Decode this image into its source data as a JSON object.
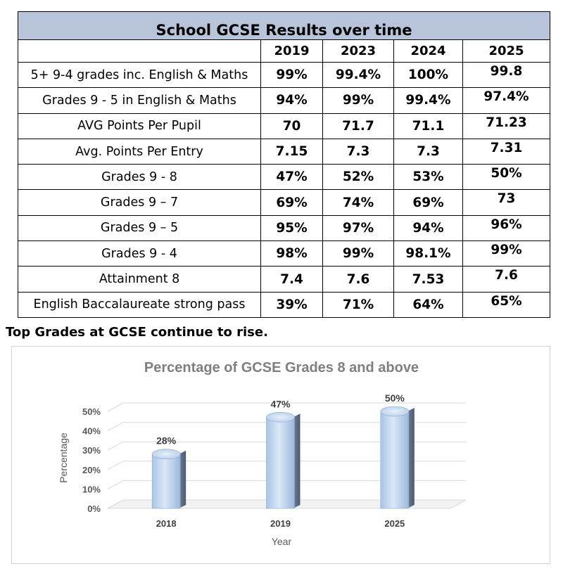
{
  "table": {
    "title": "School GCSE Results over time",
    "columns": [
      "2019",
      "2023",
      "2024",
      "2025"
    ],
    "rows": [
      {
        "label": "5+ 9-4 grades inc. English & Maths",
        "values": [
          "99%",
          "99.4%",
          "100%",
          "99.8"
        ]
      },
      {
        "label": "Grades 9 - 5 in English & Maths",
        "values": [
          "94%",
          "99%",
          "99.4%",
          "97.4%"
        ]
      },
      {
        "label": "AVG Points Per Pupil",
        "values": [
          "70",
          "71.7",
          "71.1",
          "71.23"
        ]
      },
      {
        "label": "Avg. Points Per Entry",
        "values": [
          "7.15",
          "7.3",
          "7.3",
          "7.31"
        ]
      },
      {
        "label": "Grades 9 - 8",
        "values": [
          "47%",
          "52%",
          "53%",
          "50%"
        ]
      },
      {
        "label": "Grades 9 – 7",
        "values": [
          "69%",
          "74%",
          "69%",
          "73"
        ]
      },
      {
        "label": "Grades 9 – 5",
        "values": [
          "95%",
          "97%",
          "94%",
          "96%"
        ]
      },
      {
        "label": "Grades 9 - 4",
        "values": [
          "98%",
          "99%",
          "98.1%",
          "99%"
        ]
      },
      {
        "label": "Attainment 8",
        "values": [
          "7.4",
          "7.6",
          "7.53",
          "7.6"
        ]
      },
      {
        "label": "English Baccalaureate strong pass",
        "values": [
          "39%",
          "71%",
          "64%",
          "65%"
        ]
      }
    ]
  },
  "headline": "Top Grades at GCSE continue to rise.",
  "chart_data": {
    "type": "bar",
    "title": "Percentage of GCSE Grades 8 and above",
    "xlabel": "Year",
    "ylabel": "Percentage",
    "categories": [
      "2018",
      "2019",
      "2025"
    ],
    "values": [
      28,
      47,
      50
    ],
    "data_labels": [
      "28%",
      "47%",
      "50%"
    ],
    "ylim": [
      0,
      50
    ],
    "yticks": [
      0,
      10,
      20,
      30,
      40,
      50
    ],
    "ytick_labels": [
      "0%",
      "10%",
      "20%",
      "30%",
      "40%",
      "50%"
    ],
    "grid": true,
    "legend": "none",
    "style": "3d-cylinder",
    "bar_color": "#bdd7ee"
  }
}
